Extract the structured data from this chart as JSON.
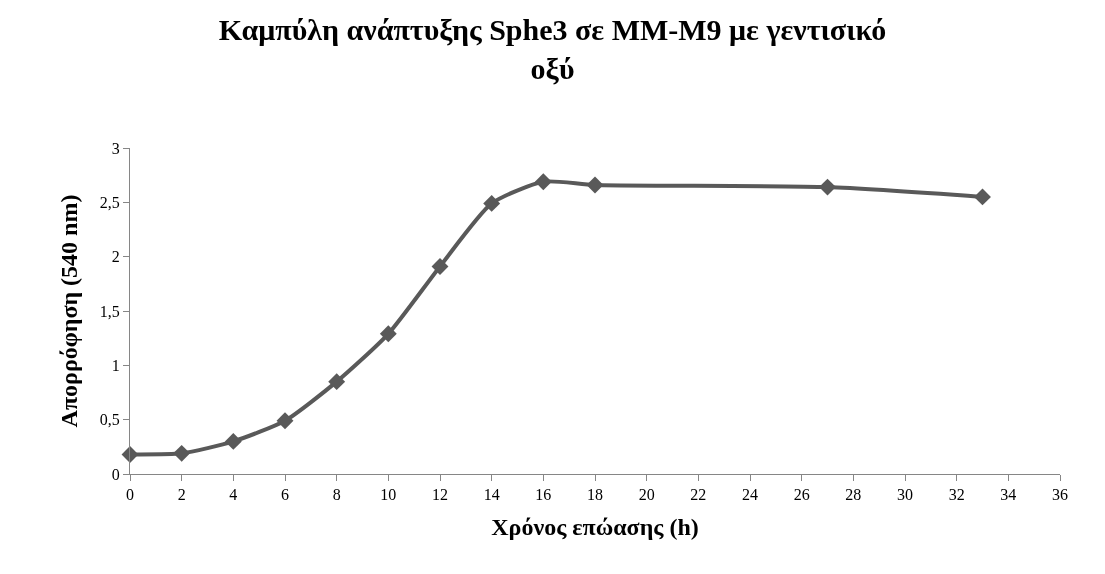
{
  "chart_data": {
    "type": "line",
    "title": "Καμπύλη ανάπτυξης Sphe3 σε MM-M9 με γεντισικό οξύ",
    "xlabel": "Χρόνος επώασης (h)",
    "ylabel": "Απορρόφηση (540 nm)",
    "x": [
      0,
      2,
      4,
      6,
      8,
      10,
      12,
      14,
      16,
      18,
      27,
      33
    ],
    "series": [
      {
        "color": "#595959",
        "values": [
          0.18,
          0.19,
          0.3,
          0.49,
          0.85,
          1.29,
          1.91,
          2.49,
          2.69,
          2.66,
          2.64,
          2.55
        ]
      }
    ],
    "xlim": [
      0,
      36
    ],
    "xticks": [
      0,
      2,
      4,
      6,
      8,
      10,
      12,
      14,
      16,
      18,
      20,
      22,
      24,
      26,
      28,
      30,
      32,
      34,
      36
    ],
    "ylim": [
      0,
      3
    ],
    "yticks": [
      0,
      {
        "value": 0.5,
        "label": "0,5"
      },
      1,
      {
        "value": 1.5,
        "label": "1,5"
      },
      2,
      {
        "value": 2.5,
        "label": "2,5"
      },
      3
    ],
    "marker": "diamond",
    "line_style": "solid"
  }
}
